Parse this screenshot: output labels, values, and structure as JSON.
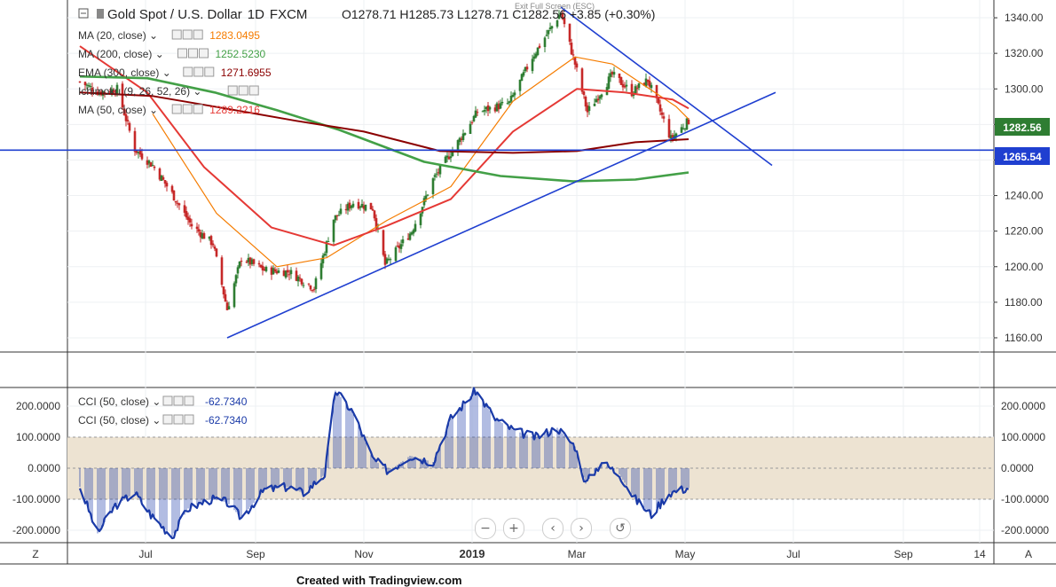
{
  "header": {
    "title": "Gold Spot / U.S. Dollar",
    "interval": "1D",
    "exchange": "FXCM",
    "ohlc": "O1278.71  H1285.73  L1278.71  C1282.56  +3.85 (+0.30%)",
    "exit_fullscreen": "Exit Full Screen (ESC)"
  },
  "indicators": [
    {
      "label": "MA (20, close)",
      "value": "1283.0495",
      "color": "#f57c00"
    },
    {
      "label": "MA (200, close)",
      "value": "1252.5230",
      "color": "#43a047"
    },
    {
      "label": "EMA (300, close)",
      "value": "1271.6955",
      "color": "#8b0000"
    },
    {
      "label": "Ichimoku (9, 26, 52, 26)",
      "value": "",
      "color": "#1e88e5"
    },
    {
      "label": "MA (50, close)",
      "value": "1289.2216",
      "color": "#e53935"
    }
  ],
  "cci_legends": [
    {
      "label": "CCI (50, close)",
      "value": "-62.7340"
    },
    {
      "label": "CCI (50, close)",
      "value": "-62.7340"
    }
  ],
  "price_axis": [
    "1340.00",
    "1320.00",
    "1300.00",
    "1280.00",
    "1260.00",
    "1240.00",
    "1220.00",
    "1200.00",
    "1180.00",
    "1160.00"
  ],
  "price_badges": {
    "last": "1282.56",
    "hline": "1265.54"
  },
  "cci_axis": [
    "200.0000",
    "100.0000",
    "0.0000",
    "-100.0000",
    "-200.0000"
  ],
  "time_axis": [
    "Jul",
    "Sep",
    "Nov",
    "2019",
    "Mar",
    "May",
    "Jul",
    "Sep",
    "14"
  ],
  "corner_left": "Z",
  "corner_right": "A",
  "credit": "Created with Tradingview.com",
  "colors": {
    "candle_up": "#2e7d32",
    "candle_down": "#c62828",
    "ma20": "#f57c00",
    "ma50": "#e53935",
    "ma200": "#43a047",
    "ema300": "#8b0000",
    "trend": "#1f3fd0",
    "cci": "#1a3aa8",
    "band": "#ede3d2"
  },
  "chart_data": {
    "type": "line",
    "title": "Gold Spot / U.S. Dollar",
    "price": {
      "x": [
        "2018-05-25",
        "2018-06-05",
        "2018-06-15",
        "2018-06-25",
        "2018-07-05",
        "2018-07-16",
        "2018-07-27",
        "2018-08-08",
        "2018-08-16",
        "2018-08-24",
        "2018-09-06",
        "2018-09-20",
        "2018-10-04",
        "2018-10-15",
        "2018-10-26",
        "2018-11-06",
        "2018-11-13",
        "2018-11-28",
        "2018-12-10",
        "2018-12-24",
        "2019-01-04",
        "2019-01-22",
        "2019-02-04",
        "2019-02-20",
        "2019-02-28",
        "2019-03-07",
        "2019-03-21",
        "2019-04-01",
        "2019-04-10",
        "2019-04-23",
        "2019-05-03"
      ],
      "close": [
        1304,
        1298,
        1300,
        1266,
        1257,
        1241,
        1223,
        1213,
        1176,
        1205,
        1198,
        1197,
        1188,
        1227,
        1236,
        1233,
        1201,
        1220,
        1249,
        1270,
        1287,
        1292,
        1318,
        1343,
        1314,
        1287,
        1308,
        1298,
        1305,
        1272,
        1282
      ],
      "ylim": [
        1152,
        1350
      ]
    },
    "levels": {
      "hline": 1265.54,
      "last": 1282.56
    },
    "moving_averages": {
      "MA20": {
        "x": [
          "2018-07-05",
          "2018-08-10",
          "2018-09-13",
          "2018-10-11",
          "2018-11-14",
          "2018-12-20",
          "2019-01-24",
          "2019-02-28",
          "2019-03-21",
          "2019-04-26",
          "2019-05-03"
        ],
        "y": [
          1286,
          1230,
          1200,
          1205,
          1226,
          1245,
          1293,
          1318,
          1314,
          1290,
          1283
        ]
      },
      "MA50": {
        "x": [
          "2018-05-25",
          "2018-07-02",
          "2018-08-03",
          "2018-09-10",
          "2018-10-15",
          "2018-11-14",
          "2018-12-20",
          "2019-01-24",
          "2019-03-01",
          "2019-03-28",
          "2019-04-24",
          "2019-05-03"
        ],
        "y": [
          1324,
          1298,
          1256,
          1222,
          1212,
          1223,
          1238,
          1276,
          1300,
          1298,
          1294,
          1289
        ]
      },
      "MA200": {
        "x": [
          "2018-05-25",
          "2018-07-02",
          "2018-08-09",
          "2018-09-13",
          "2018-10-18",
          "2018-12-05",
          "2019-01-17",
          "2019-02-27",
          "2019-04-03",
          "2019-05-03"
        ],
        "y": [
          1307,
          1306,
          1298,
          1288,
          1277,
          1259,
          1251,
          1248,
          1249,
          1253
        ]
      },
      "EMA300": {
        "x": [
          "2018-05-25",
          "2018-07-05",
          "2018-08-15",
          "2018-09-24",
          "2018-11-01",
          "2018-12-14",
          "2019-01-24",
          "2019-03-01",
          "2019-04-03",
          "2019-05-03"
        ],
        "y": [
          1298,
          1296,
          1289,
          1282,
          1276,
          1265,
          1264,
          1265,
          1270,
          1271.7
        ]
      }
    },
    "trendlines": [
      {
        "x": [
          "2018-08-16",
          "2019-06-21"
        ],
        "y": [
          1160,
          1298
        ]
      },
      {
        "x": [
          "2019-02-20",
          "2019-06-19"
        ],
        "y": [
          1346,
          1257
        ]
      }
    ],
    "cci": {
      "name": "CCI (50, close)",
      "x": [
        "2018-05-25",
        "2018-06-04",
        "2018-06-14",
        "2018-06-25",
        "2018-07-04",
        "2018-07-16",
        "2018-07-25",
        "2018-08-07",
        "2018-08-16",
        "2018-08-24",
        "2018-09-06",
        "2018-09-19",
        "2018-09-28",
        "2018-10-10",
        "2018-10-16",
        "2018-10-26",
        "2018-11-06",
        "2018-11-15",
        "2018-11-27",
        "2018-12-10",
        "2018-12-20",
        "2019-01-03",
        "2019-01-14",
        "2019-01-25",
        "2019-02-06",
        "2019-02-18",
        "2019-02-28",
        "2019-03-06",
        "2019-03-15",
        "2019-03-25",
        "2019-04-03",
        "2019-04-12",
        "2019-04-22",
        "2019-05-03"
      ],
      "values": [
        -60,
        -210,
        -120,
        -80,
        -150,
        -220,
        -130,
        -100,
        -110,
        -160,
        -70,
        -60,
        -80,
        -20,
        250,
        180,
        30,
        -10,
        40,
        20,
        160,
        250,
        160,
        120,
        100,
        130,
        70,
        -50,
        20,
        -20,
        -100,
        -150,
        -80,
        -62.734
      ],
      "ylim": [
        -240,
        260
      ],
      "bands": [
        -100,
        100
      ]
    },
    "ylabel": "",
    "xlabel": ""
  }
}
